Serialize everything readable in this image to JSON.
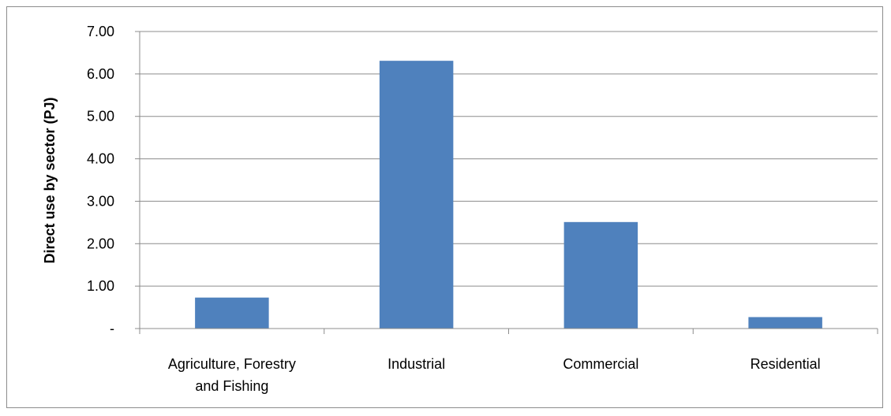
{
  "chart_data": {
    "type": "bar",
    "title": "",
    "xlabel": "",
    "ylabel": "Direct use by sector (PJ)",
    "categories": [
      [
        "Agriculture, Forestry",
        "and Fishing"
      ],
      [
        "Industrial"
      ],
      [
        "Commercial"
      ],
      [
        "Residential"
      ]
    ],
    "series": [
      {
        "values": [
          0.73,
          6.31,
          2.51,
          0.27
        ],
        "color": "#4f81bd"
      }
    ],
    "yticks": [
      {
        "value": 0,
        "label": "-"
      },
      {
        "value": 1,
        "label": "1.00"
      },
      {
        "value": 2,
        "label": "2.00"
      },
      {
        "value": 3,
        "label": "3.00"
      },
      {
        "value": 4,
        "label": "4.00"
      },
      {
        "value": 5,
        "label": "5.00"
      },
      {
        "value": 6,
        "label": "6.00"
      },
      {
        "value": 7,
        "label": "7.00"
      }
    ],
    "ylim": [
      0,
      7
    ],
    "grid": true,
    "legend": "none"
  }
}
